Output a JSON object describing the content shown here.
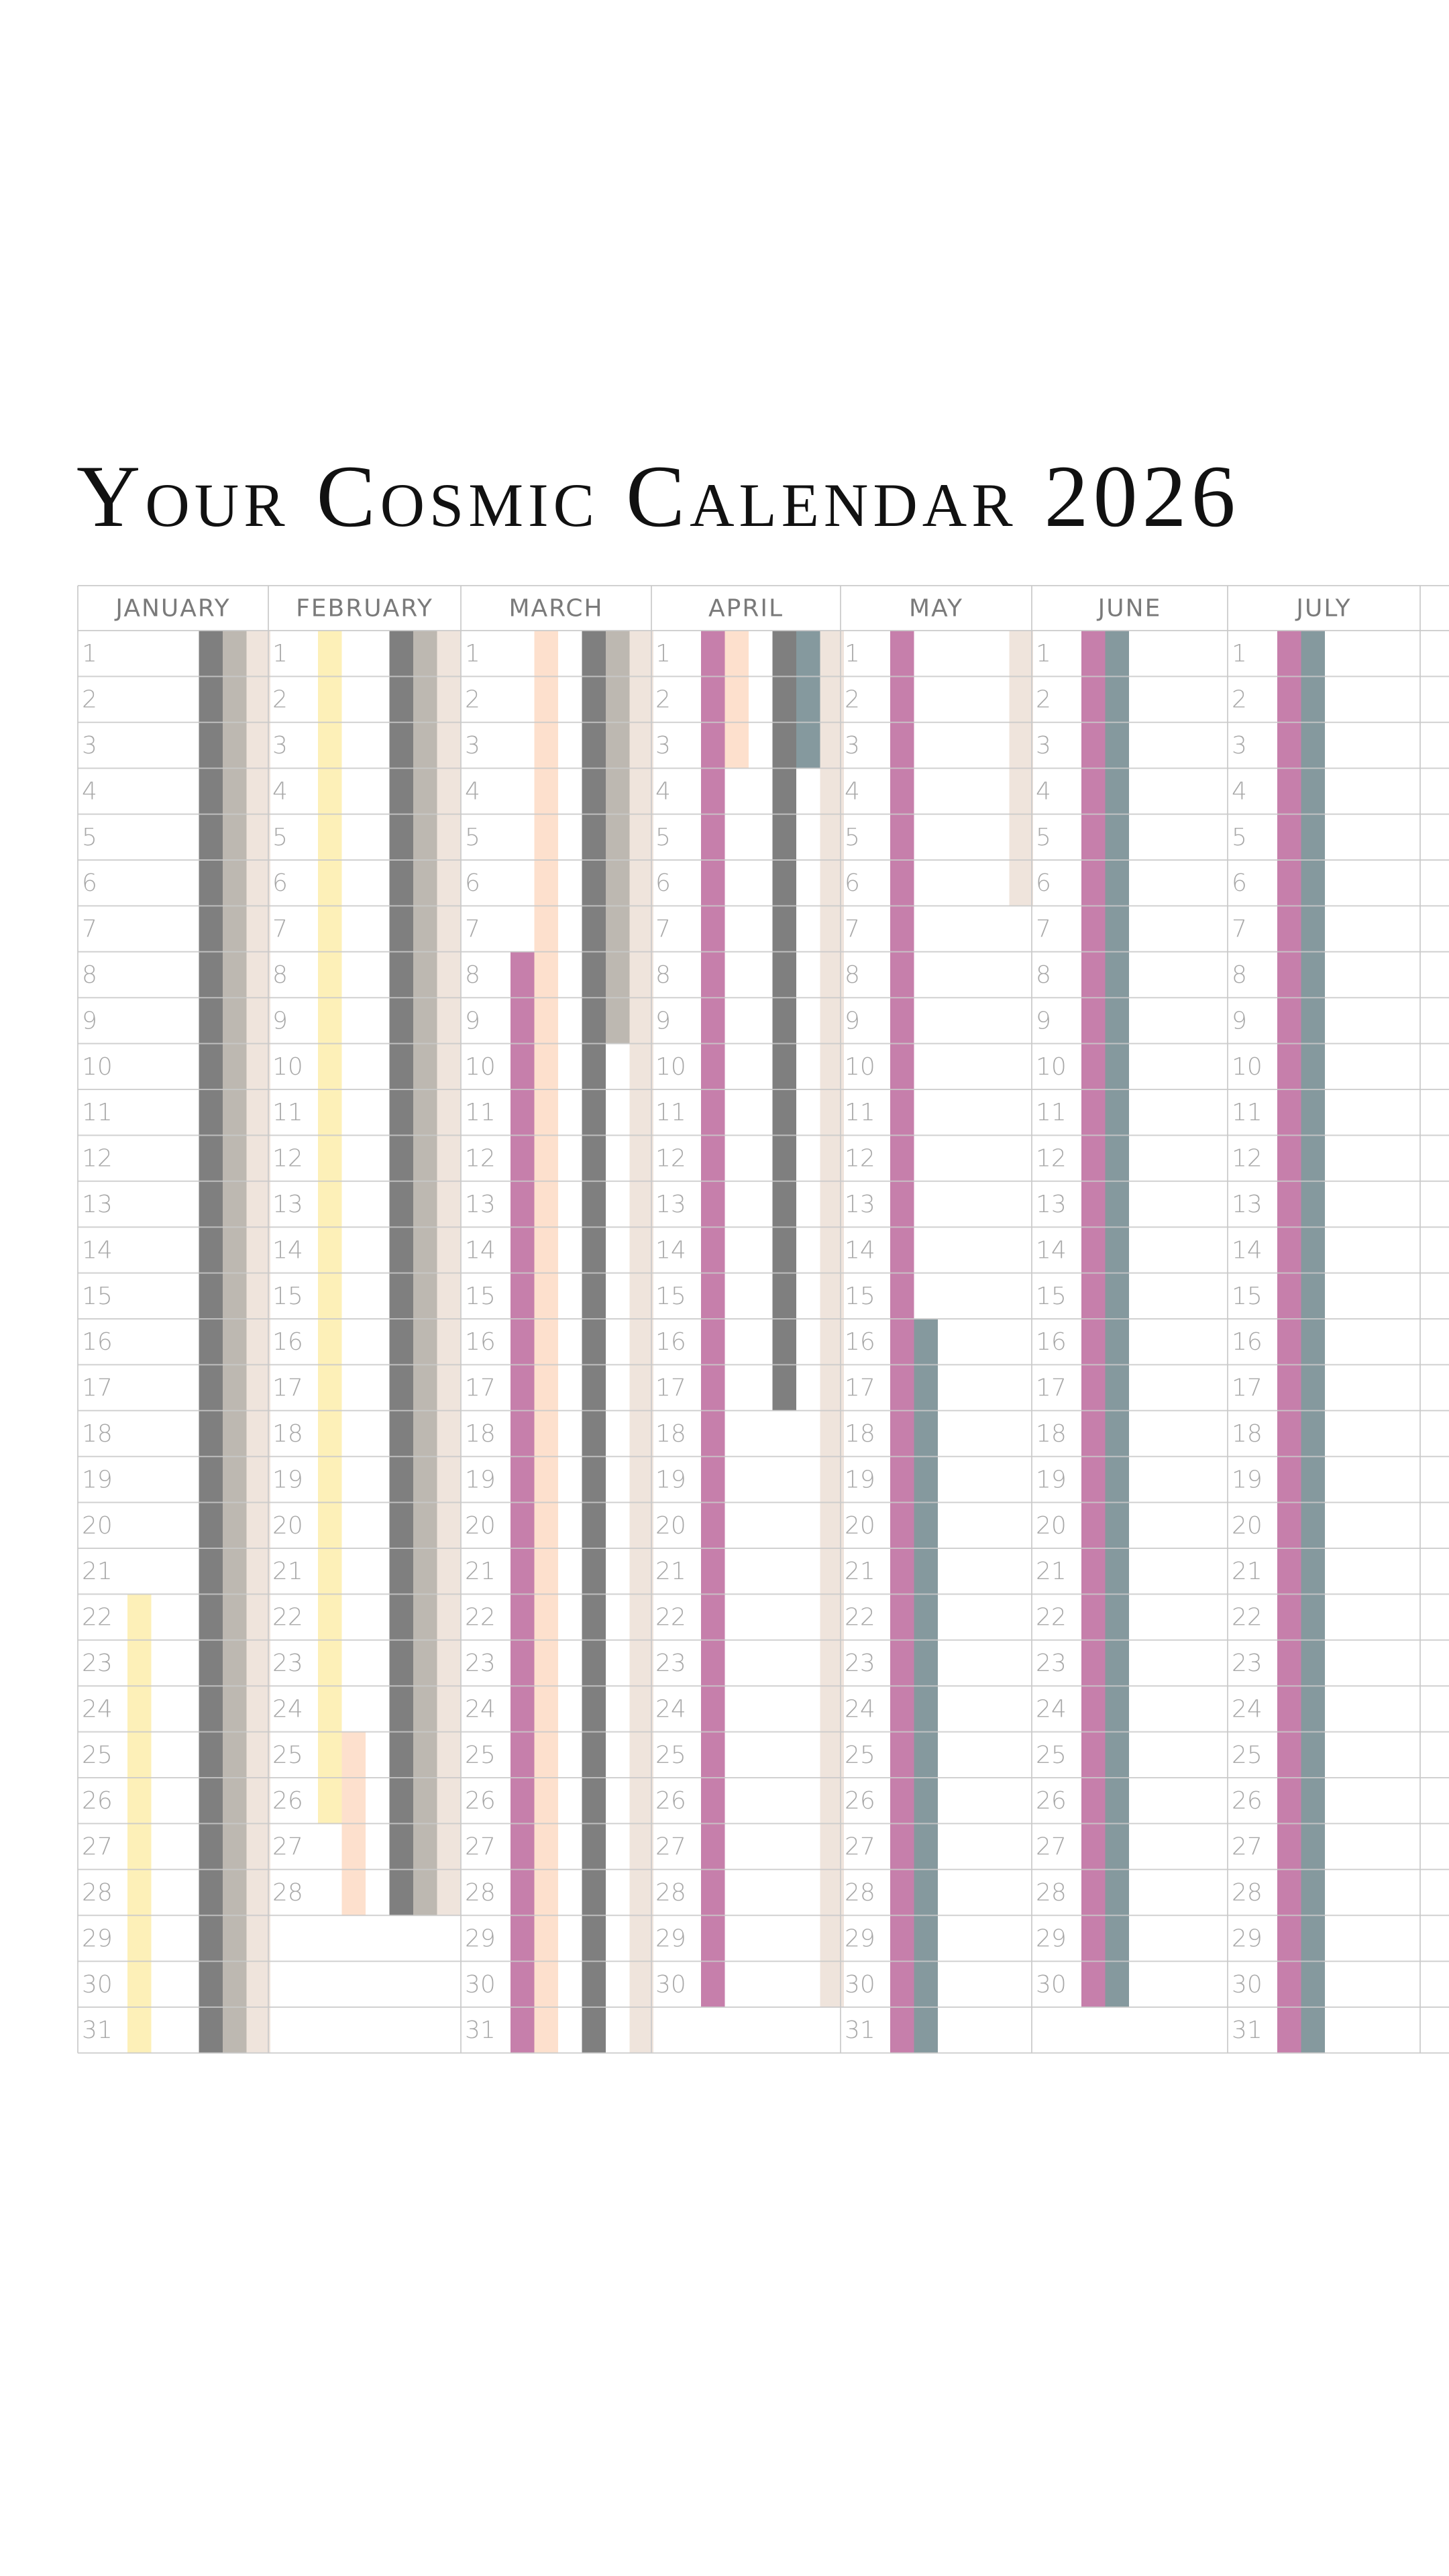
{
  "title": "Your Cosmic Calendar 2026",
  "months": [
    {
      "name": "JANUARY",
      "days": [
        1,
        2,
        3,
        4,
        5,
        6,
        7,
        8,
        9,
        10,
        11,
        12,
        13,
        14,
        15,
        16,
        17,
        18,
        19,
        20,
        21,
        22,
        23,
        24,
        25,
        26,
        27,
        28,
        29,
        30,
        31
      ],
      "periods": [
        {
          "start": 22,
          "end": 31,
          "color": "#fdf0b8"
        },
        {
          "start": 1,
          "end": 31,
          "color": "#7f7f7f"
        },
        {
          "start": 1,
          "end": 31,
          "color": "#bdb8b1"
        },
        {
          "start": 1,
          "end": 31,
          "color": "#efe4dc"
        }
      ]
    },
    {
      "name": "FEBRUARY",
      "days": [
        1,
        2,
        3,
        4,
        5,
        6,
        7,
        8,
        9,
        10,
        11,
        12,
        13,
        14,
        15,
        16,
        17,
        18,
        19,
        20,
        21,
        22,
        23,
        24,
        25,
        26,
        27,
        28
      ],
      "periods": [
        {
          "start": 1,
          "end": 26,
          "color": "#fdf0b8"
        },
        {
          "start": 25,
          "end": 28,
          "color": "#fde0cd"
        },
        {
          "start": 1,
          "end": 28,
          "color": "#7f7f7f"
        },
        {
          "start": 1,
          "end": 28,
          "color": "#bdb8b1"
        },
        {
          "start": 1,
          "end": 28,
          "color": "#efe4dc"
        }
      ]
    },
    {
      "name": "MARCH",
      "days": [
        1,
        2,
        3,
        4,
        5,
        6,
        7,
        8,
        9,
        10,
        11,
        12,
        13,
        14,
        15,
        16,
        17,
        18,
        19,
        20,
        21,
        22,
        23,
        24,
        25,
        26,
        27,
        28,
        29,
        30,
        31
      ],
      "periods": [
        {
          "start": 8,
          "end": 31,
          "color": "#c67fab"
        },
        {
          "start": 1,
          "end": 31,
          "color": "#fde0cd"
        },
        {
          "start": 1,
          "end": 31,
          "color": "#7f7f7f"
        },
        {
          "start": 1,
          "end": 9,
          "color": "#bdb8b1"
        },
        {
          "start": 1,
          "end": 31,
          "color": "#efe4dc"
        }
      ]
    },
    {
      "name": "APRIL",
      "days": [
        1,
        2,
        3,
        4,
        5,
        6,
        7,
        8,
        9,
        10,
        11,
        12,
        13,
        14,
        15,
        16,
        17,
        18,
        19,
        20,
        21,
        22,
        23,
        24,
        25,
        26,
        27,
        28,
        29,
        30
      ],
      "periods": [
        {
          "start": 1,
          "end": 30,
          "color": "#c67fab"
        },
        {
          "start": 1,
          "end": 3,
          "color": "#fde0cd"
        },
        {
          "start": 1,
          "end": 17,
          "color": "#7f7f7f"
        },
        {
          "start": 1,
          "end": 3,
          "color": "#85999e"
        },
        {
          "start": 1,
          "end": 30,
          "color": "#efe4dc"
        }
      ]
    },
    {
      "name": "MAY",
      "days": [
        1,
        2,
        3,
        4,
        5,
        6,
        7,
        8,
        9,
        10,
        11,
        12,
        13,
        14,
        15,
        16,
        17,
        18,
        19,
        20,
        21,
        22,
        23,
        24,
        25,
        26,
        27,
        28,
        29,
        30,
        31
      ],
      "periods": [
        {
          "start": 1,
          "end": 31,
          "color": "#c67fab"
        },
        {
          "start": 16,
          "end": 31,
          "color": "#85999e"
        },
        {
          "start": 1,
          "end": 6,
          "color": "#efe4dc"
        }
      ]
    },
    {
      "name": "JUNE",
      "days": [
        1,
        2,
        3,
        4,
        5,
        6,
        7,
        8,
        9,
        10,
        11,
        12,
        13,
        14,
        15,
        16,
        17,
        18,
        19,
        20,
        21,
        22,
        23,
        24,
        25,
        26,
        27,
        28,
        29,
        30
      ],
      "periods": [
        {
          "start": 1,
          "end": 30,
          "color": "#c67fab"
        },
        {
          "start": 1,
          "end": 30,
          "color": "#85999e"
        }
      ]
    },
    {
      "name": "JULY",
      "days": [
        1,
        2,
        3,
        4,
        5,
        6,
        7,
        8,
        9,
        10,
        11,
        12,
        13,
        14,
        15,
        16,
        17,
        18,
        19,
        20,
        21,
        22,
        23,
        24,
        25,
        26,
        27,
        28,
        29,
        30,
        31
      ],
      "periods": [
        {
          "start": 1,
          "end": 31,
          "color": "#c67fab"
        },
        {
          "start": 1,
          "end": 31,
          "color": "#85999e"
        }
      ]
    }
  ]
}
